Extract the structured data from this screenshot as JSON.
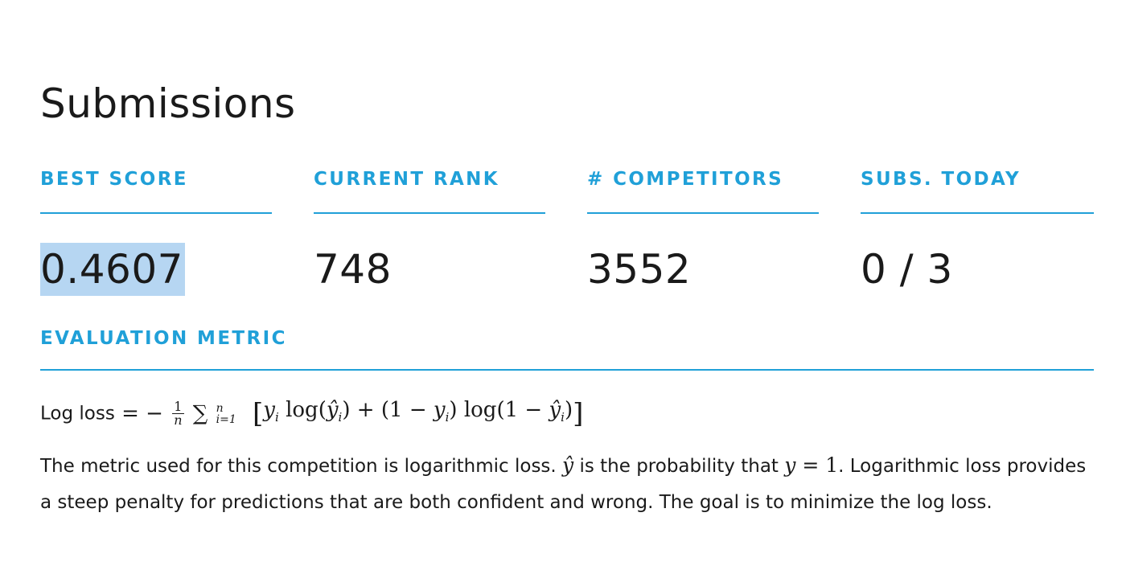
{
  "page": {
    "title": "Submissions"
  },
  "stats": [
    {
      "label": "BEST SCORE",
      "value": "0.4607"
    },
    {
      "label": "CURRENT RANK",
      "value": "748"
    },
    {
      "label": "# COMPETITORS",
      "value": "3552"
    },
    {
      "label": "SUBS. TODAY",
      "value": "0 / 3"
    }
  ],
  "evaluation": {
    "label": "EVALUATION METRIC",
    "formula": {
      "lhs": "Log loss",
      "equals": "=",
      "minus": "−",
      "frac_num": "1",
      "frac_den": "n",
      "sum": "∑",
      "sum_sup": "n",
      "sum_sub": "i=1",
      "open_bracket": "[",
      "y": "y",
      "i": "i",
      "log": "log",
      "yhat": "ŷ",
      "plus": "+",
      "one": "1",
      "close_bracket": "]"
    },
    "description": {
      "part1": "The metric used for this competition is logarithmic loss. ",
      "yhat": "ŷ",
      "part2": " is the probability that ",
      "y_eq": "y",
      "eq_one": " = 1",
      "part3": ". Logarithmic loss provides a steep penalty for predictions that are both confident and wrong. The goal is to minimize the log loss."
    }
  },
  "colors": {
    "accent": "#20a0d8",
    "text": "#1a1a1a",
    "selection": "#b6d6f2",
    "background": "#ffffff"
  }
}
